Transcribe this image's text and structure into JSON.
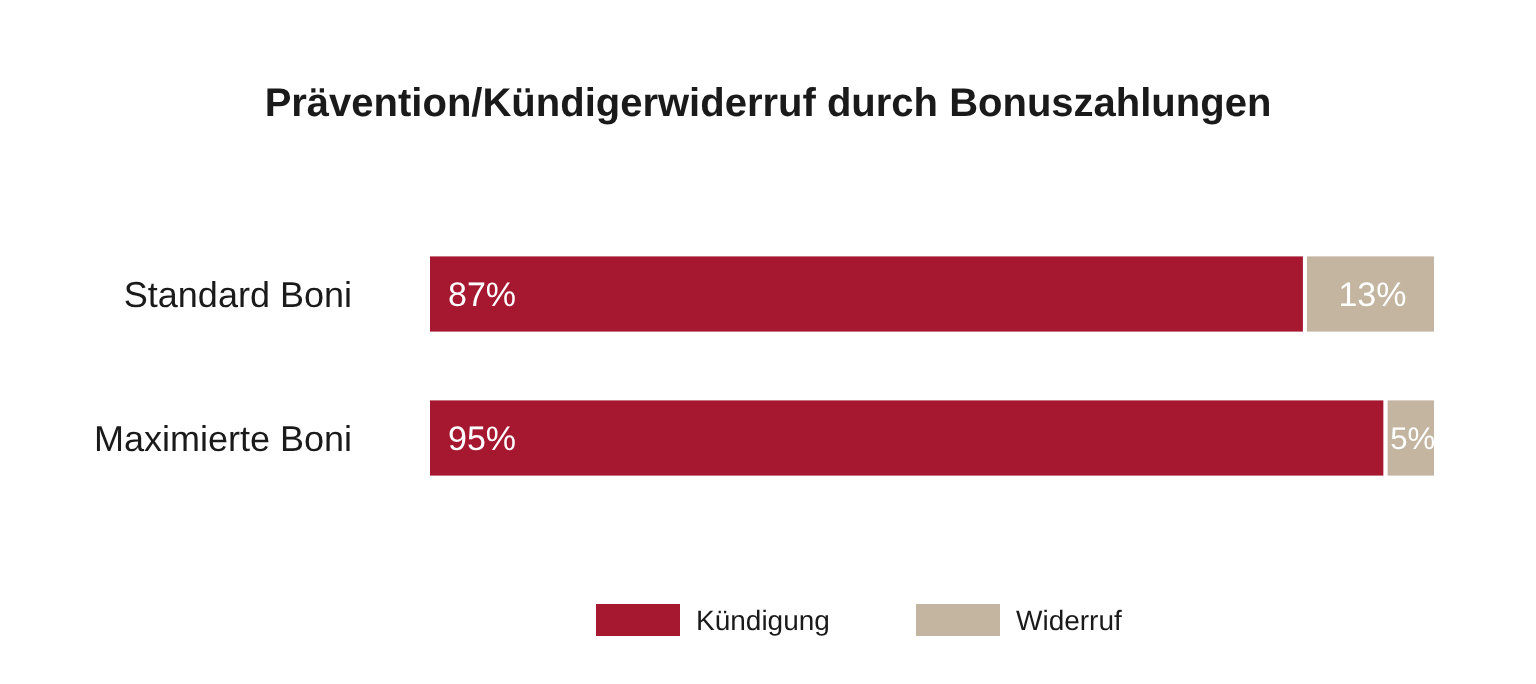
{
  "chart_data": {
    "type": "bar",
    "orientation": "horizontal",
    "stacked": true,
    "title": "Prävention/Kündigerwiderruf durch Bonuszahlungen",
    "categories": [
      "Standard Boni",
      "Maximierte Boni"
    ],
    "xlim": [
      0,
      100
    ],
    "tick_labels": "y",
    "legend": "bottom",
    "series": [
      {
        "name": "Kündigung",
        "color": "#a51830",
        "values": [
          87,
          95
        ],
        "value_labels": [
          "87%",
          "95%"
        ]
      },
      {
        "name": "Widerruf",
        "color": "#c3b5a0",
        "values": [
          13,
          5
        ],
        "value_labels": [
          "13%",
          "5%"
        ]
      }
    ]
  }
}
